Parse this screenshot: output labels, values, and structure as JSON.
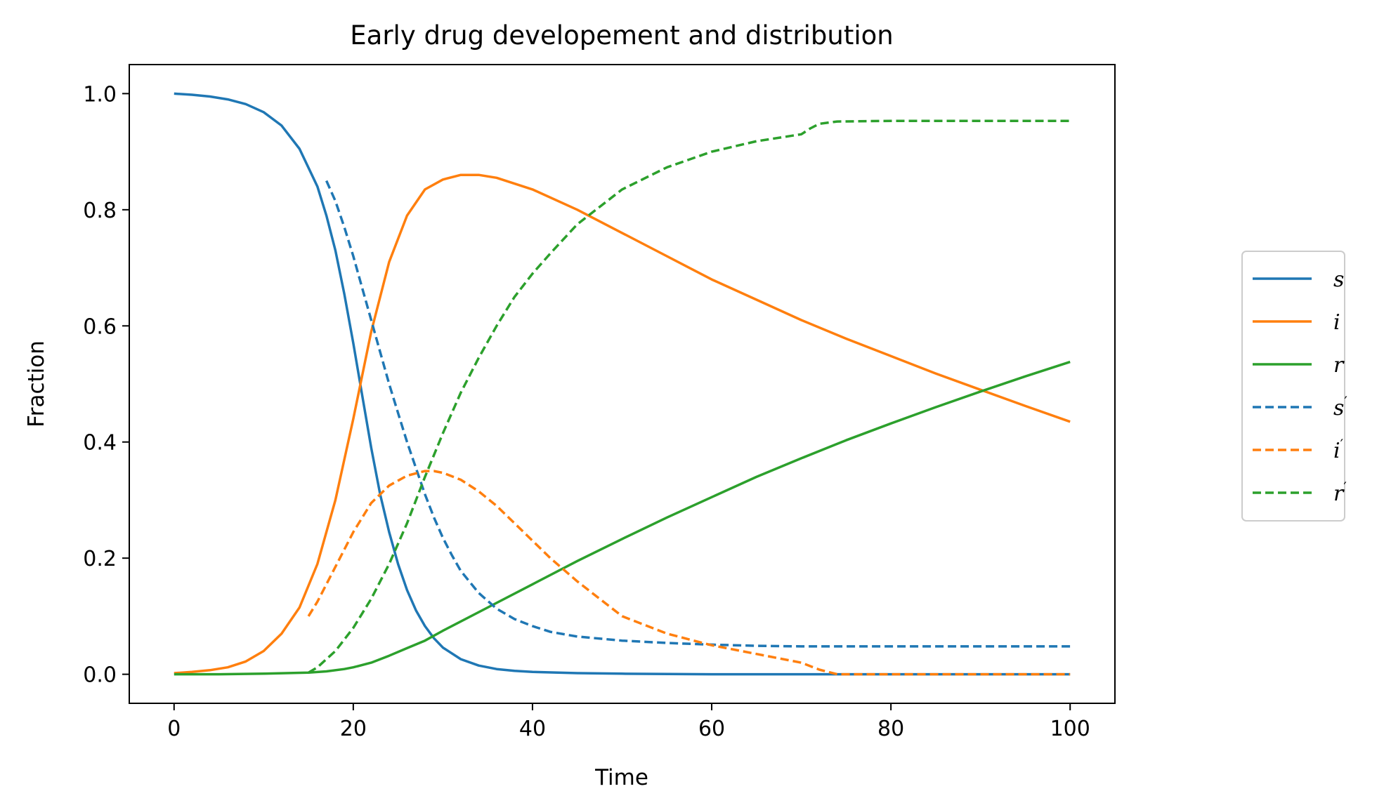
{
  "chart_data": {
    "type": "line",
    "title": "Early drug developement and distribution",
    "xlabel": "Time",
    "ylabel": "Fraction",
    "xlim": [
      -5,
      105
    ],
    "ylim": [
      -0.05,
      1.05
    ],
    "xticks": [
      0,
      20,
      40,
      60,
      80,
      100
    ],
    "xtick_labels": [
      "0",
      "20",
      "40",
      "60",
      "80",
      "100"
    ],
    "yticks": [
      0.0,
      0.2,
      0.4,
      0.6,
      0.8,
      1.0
    ],
    "ytick_labels": [
      "0.0",
      "0.2",
      "0.4",
      "0.6",
      "0.8",
      "1.0"
    ],
    "grid": false,
    "legend_position": "right, outside plot",
    "series": [
      {
        "name": "s",
        "label_prime": false,
        "color": "#1f77b4",
        "dash": "solid",
        "x": [
          0,
          2,
          4,
          6,
          8,
          10,
          12,
          14,
          16,
          17,
          18,
          19,
          20,
          21,
          22,
          23,
          24,
          25,
          26,
          27,
          28,
          29,
          30,
          32,
          34,
          36,
          38,
          40,
          45,
          50,
          60,
          70,
          80,
          90,
          100
        ],
        "y": [
          1.0,
          0.998,
          0.995,
          0.99,
          0.982,
          0.968,
          0.945,
          0.905,
          0.84,
          0.79,
          0.73,
          0.655,
          0.57,
          0.48,
          0.39,
          0.31,
          0.245,
          0.19,
          0.145,
          0.11,
          0.083,
          0.062,
          0.046,
          0.026,
          0.015,
          0.009,
          0.006,
          0.004,
          0.002,
          0.001,
          0.0,
          0.0,
          0.0,
          0.0,
          0.0
        ]
      },
      {
        "name": "i",
        "label_prime": false,
        "color": "#ff7f0e",
        "dash": "solid",
        "x": [
          0,
          2,
          4,
          6,
          8,
          10,
          12,
          14,
          16,
          18,
          20,
          22,
          24,
          26,
          28,
          30,
          32,
          34,
          36,
          40,
          45,
          50,
          55,
          60,
          65,
          70,
          75,
          80,
          85,
          90,
          95,
          100
        ],
        "y": [
          0.002,
          0.004,
          0.007,
          0.012,
          0.022,
          0.04,
          0.07,
          0.115,
          0.19,
          0.3,
          0.44,
          0.59,
          0.71,
          0.79,
          0.835,
          0.852,
          0.86,
          0.86,
          0.855,
          0.835,
          0.8,
          0.76,
          0.72,
          0.68,
          0.645,
          0.61,
          0.578,
          0.548,
          0.518,
          0.49,
          0.462,
          0.435
        ]
      },
      {
        "name": "r",
        "label_prime": false,
        "color": "#2ca02c",
        "dash": "solid",
        "x": [
          0,
          5,
          10,
          15,
          17,
          19,
          20,
          22,
          24,
          26,
          28,
          30,
          35,
          40,
          45,
          50,
          55,
          60,
          65,
          70,
          75,
          80,
          85,
          90,
          95,
          100
        ],
        "y": [
          0.0,
          0.0,
          0.001,
          0.003,
          0.005,
          0.009,
          0.012,
          0.02,
          0.032,
          0.045,
          0.058,
          0.075,
          0.115,
          0.155,
          0.195,
          0.233,
          0.27,
          0.305,
          0.34,
          0.372,
          0.403,
          0.432,
          0.46,
          0.487,
          0.513,
          0.538
        ]
      },
      {
        "name": "s",
        "label_prime": true,
        "color": "#1f77b4",
        "dash": "dashed",
        "x": [
          17,
          18,
          19,
          20,
          21,
          22,
          23,
          24,
          25,
          26,
          27,
          28,
          29,
          30,
          31,
          32,
          34,
          36,
          38,
          40,
          42,
          45,
          50,
          55,
          60,
          65,
          70,
          75,
          80,
          90,
          100
        ],
        "y": [
          0.85,
          0.815,
          0.77,
          0.72,
          0.665,
          0.61,
          0.555,
          0.5,
          0.45,
          0.4,
          0.355,
          0.31,
          0.27,
          0.235,
          0.205,
          0.178,
          0.14,
          0.113,
          0.095,
          0.083,
          0.073,
          0.065,
          0.058,
          0.054,
          0.051,
          0.049,
          0.048,
          0.048,
          0.048,
          0.048,
          0.048
        ]
      },
      {
        "name": "i",
        "label_prime": true,
        "color": "#ff7f0e",
        "dash": "dashed",
        "x": [
          15,
          16,
          18,
          20,
          22,
          24,
          26,
          28,
          29,
          30,
          32,
          34,
          36,
          38,
          40,
          42,
          45,
          50,
          55,
          60,
          65,
          70,
          72,
          74,
          80,
          90,
          100
        ],
        "y": [
          0.1,
          0.125,
          0.185,
          0.245,
          0.295,
          0.325,
          0.342,
          0.35,
          0.35,
          0.347,
          0.335,
          0.315,
          0.29,
          0.26,
          0.23,
          0.2,
          0.16,
          0.1,
          0.07,
          0.05,
          0.035,
          0.02,
          0.008,
          0.0,
          0.0,
          0.0,
          0.0
        ]
      },
      {
        "name": "r",
        "label_prime": true,
        "color": "#2ca02c",
        "dash": "dashed",
        "x": [
          15,
          16,
          18,
          20,
          22,
          24,
          26,
          28,
          30,
          32,
          34,
          36,
          38,
          40,
          42,
          45,
          50,
          55,
          60,
          65,
          70,
          71,
          72,
          74,
          80,
          90,
          100
        ],
        "y": [
          0.003,
          0.012,
          0.04,
          0.08,
          0.13,
          0.19,
          0.26,
          0.34,
          0.415,
          0.485,
          0.545,
          0.6,
          0.65,
          0.69,
          0.725,
          0.775,
          0.835,
          0.873,
          0.9,
          0.918,
          0.93,
          0.94,
          0.948,
          0.952,
          0.953,
          0.953,
          0.953
        ]
      }
    ]
  }
}
